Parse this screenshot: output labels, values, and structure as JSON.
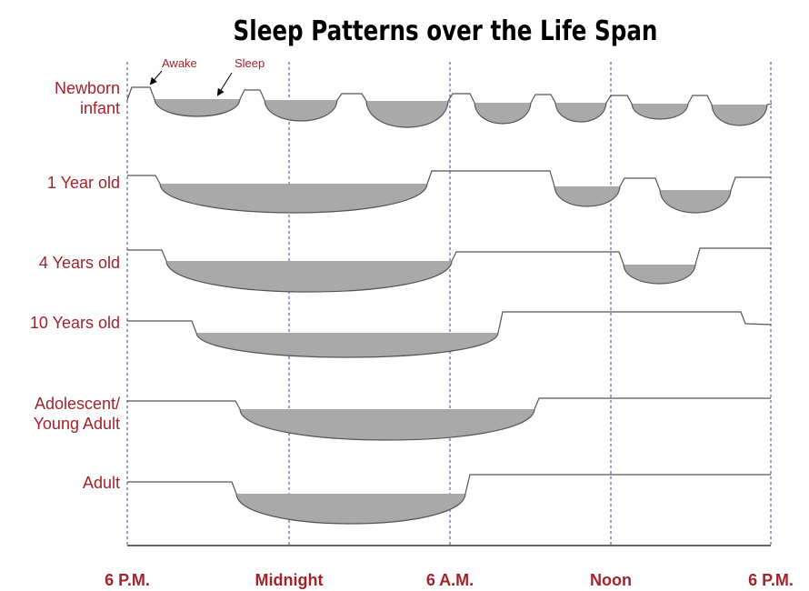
{
  "title": "Sleep Patterns over the  Life Span",
  "annotations": {
    "awake": "Awake",
    "sleep": "Sleep"
  },
  "rows": [
    {
      "label_lines": [
        "Newborn",
        "infant"
      ]
    },
    {
      "label_lines": [
        "1 Year old"
      ]
    },
    {
      "label_lines": [
        "4 Years old"
      ]
    },
    {
      "label_lines": [
        "10 Years old"
      ]
    },
    {
      "label_lines": [
        "Adolescent/",
        "Young Adult"
      ]
    },
    {
      "label_lines": [
        "Adult"
      ]
    }
  ],
  "time_labels": [
    "6 P.M.",
    "Midnight",
    "6 A.M.",
    "Noon",
    "6 P.M."
  ]
}
